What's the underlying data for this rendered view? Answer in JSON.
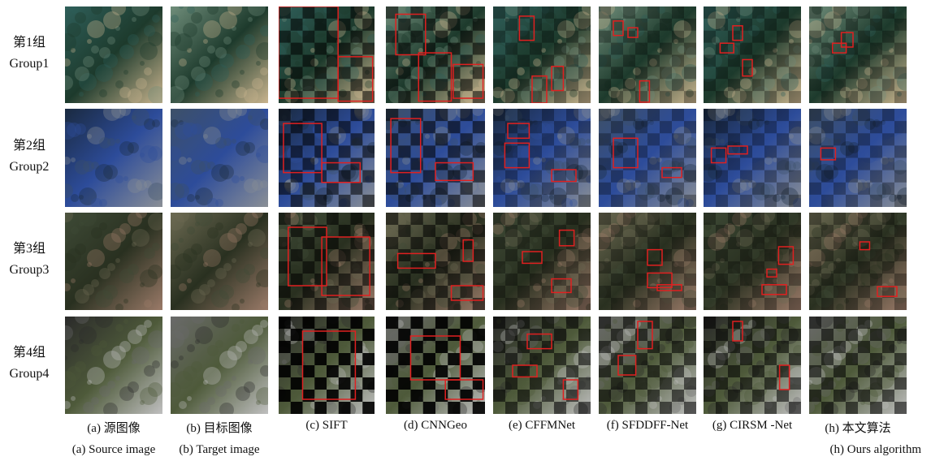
{
  "rows": [
    {
      "label_cn": "第1组",
      "label_en": "Group1"
    },
    {
      "label_cn": "第2组",
      "label_en": "Group2"
    },
    {
      "label_cn": "第3组",
      "label_en": "Group3"
    },
    {
      "label_cn": "第4组",
      "label_en": "Group4"
    }
  ],
  "columns": [
    {
      "label_cn": "(a) 源图像",
      "label_en": "(a) Source image"
    },
    {
      "label_cn": "(b) 目标图像",
      "label_en": "(b) Target image"
    },
    {
      "label": "(c) SIFT"
    },
    {
      "label": "(d) CNNGeo"
    },
    {
      "label": "(e) CFFMNet"
    },
    {
      "label": "(f) SFDDFF-Net"
    },
    {
      "label": "(g) CIRSM -Net"
    },
    {
      "label_cn": "(h) 本文算法",
      "label_en": "(h) Ours algorithm"
    }
  ]
}
